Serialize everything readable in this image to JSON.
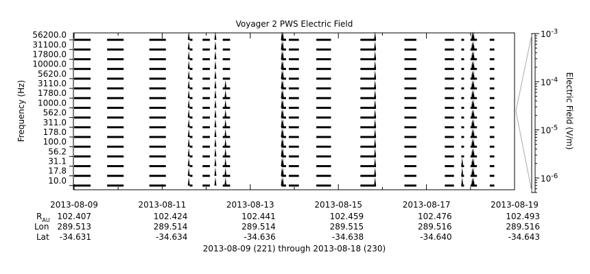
{
  "chart_data": {
    "type": "line",
    "title": "Voyager 2 PWS Electric Field",
    "ylabel": "Frequency (Hz)",
    "right_axis": {
      "label": "Electric Field (V/m)",
      "scale": "log",
      "range": [
        5e-07,
        0.001
      ],
      "ticks": [
        {
          "value": 1e-06,
          "base": "10",
          "exp": "-6"
        },
        {
          "value": 1e-05,
          "base": "10",
          "exp": "-5"
        },
        {
          "value": 0.0001,
          "base": "10",
          "exp": "-4"
        },
        {
          "value": 0.001,
          "base": "10",
          "exp": "-3"
        }
      ]
    },
    "channels": [
      "10.0",
      "17.8",
      "31.1",
      "56.2",
      "100.0",
      "178.0",
      "311.0",
      "562.0",
      "1000.0",
      "1780.0",
      "3110.0",
      "5620.0",
      "10000.0",
      "17800.0",
      "31100.0",
      "56200.0"
    ],
    "x_range": [
      "2013-08-09",
      "2013-08-19"
    ],
    "x_ticks": [
      "2013-08-09",
      "2013-08-11",
      "2013-08-13",
      "2013-08-15",
      "2013-08-17",
      "2013-08-19"
    ],
    "ephemeris": {
      "labels": {
        "r": "R",
        "r_sub": "AU",
        "lon": "Lon",
        "lat": "Lat"
      },
      "r": [
        "102.407",
        "102.424",
        "102.441",
        "102.459",
        "102.476",
        "102.493"
      ],
      "lon": [
        "289.513",
        "289.514",
        "289.514",
        "289.515",
        "289.516",
        "289.516"
      ],
      "lat": [
        "-34.631",
        "-34.634",
        "-34.636",
        "-34.638",
        "-34.640",
        "-34.643"
      ]
    },
    "date_range_caption": "2013-08-09 (221) through 2013-08-18 (230)",
    "coverage_segments": [
      [
        "2013-08-09 00:00",
        "2013-08-09 09:00"
      ],
      [
        "2013-08-09 18:00",
        "2013-08-10 03:00"
      ],
      [
        "2013-08-10 17:00",
        "2013-08-11 02:00"
      ],
      [
        "2013-08-11 15:00",
        "2013-08-11 16:30"
      ],
      [
        "2013-08-11 22:00",
        "2013-08-12 02:00"
      ],
      [
        "2013-08-12 09:00",
        "2013-08-12 13:00"
      ],
      [
        "2013-08-13 17:00",
        "2013-08-13 19:30"
      ],
      [
        "2013-08-13 21:00",
        "2013-08-14 02:30"
      ],
      [
        "2013-08-14 12:00",
        "2013-08-14 20:00"
      ],
      [
        "2013-08-15 12:00",
        "2013-08-15 20:30"
      ],
      [
        "2013-08-16 12:00",
        "2013-08-16 18:30"
      ],
      [
        "2013-08-17 10:00",
        "2013-08-17 15:00"
      ],
      [
        "2013-08-17 19:00",
        "2013-08-17 20:30"
      ],
      [
        "2013-08-18 00:00",
        "2013-08-18 03:30"
      ],
      [
        "2013-08-18 10:30",
        "2013-08-18 13:00"
      ]
    ],
    "bursts": [
      {
        "time": "2013-08-11 14:30",
        "top_channel": "56200.0"
      },
      {
        "time": "2013-08-12 05:00",
        "top_channel": "56200.0"
      },
      {
        "time": "2013-08-12 10:30",
        "top_channel": "3110.0"
      },
      {
        "time": "2013-08-13 17:15",
        "top_channel": "56200.0"
      },
      {
        "time": "2013-08-13 17:45",
        "top_channel": "56200.0"
      },
      {
        "time": "2013-08-15 20:00",
        "top_channel": "56200.0"
      },
      {
        "time": "2013-08-17 19:30",
        "top_channel": "31.1"
      },
      {
        "time": "2013-08-18 01:00",
        "top_channel": "56200.0"
      },
      {
        "time": "2013-08-18 01:40",
        "top_channel": "56200.0"
      }
    ]
  }
}
